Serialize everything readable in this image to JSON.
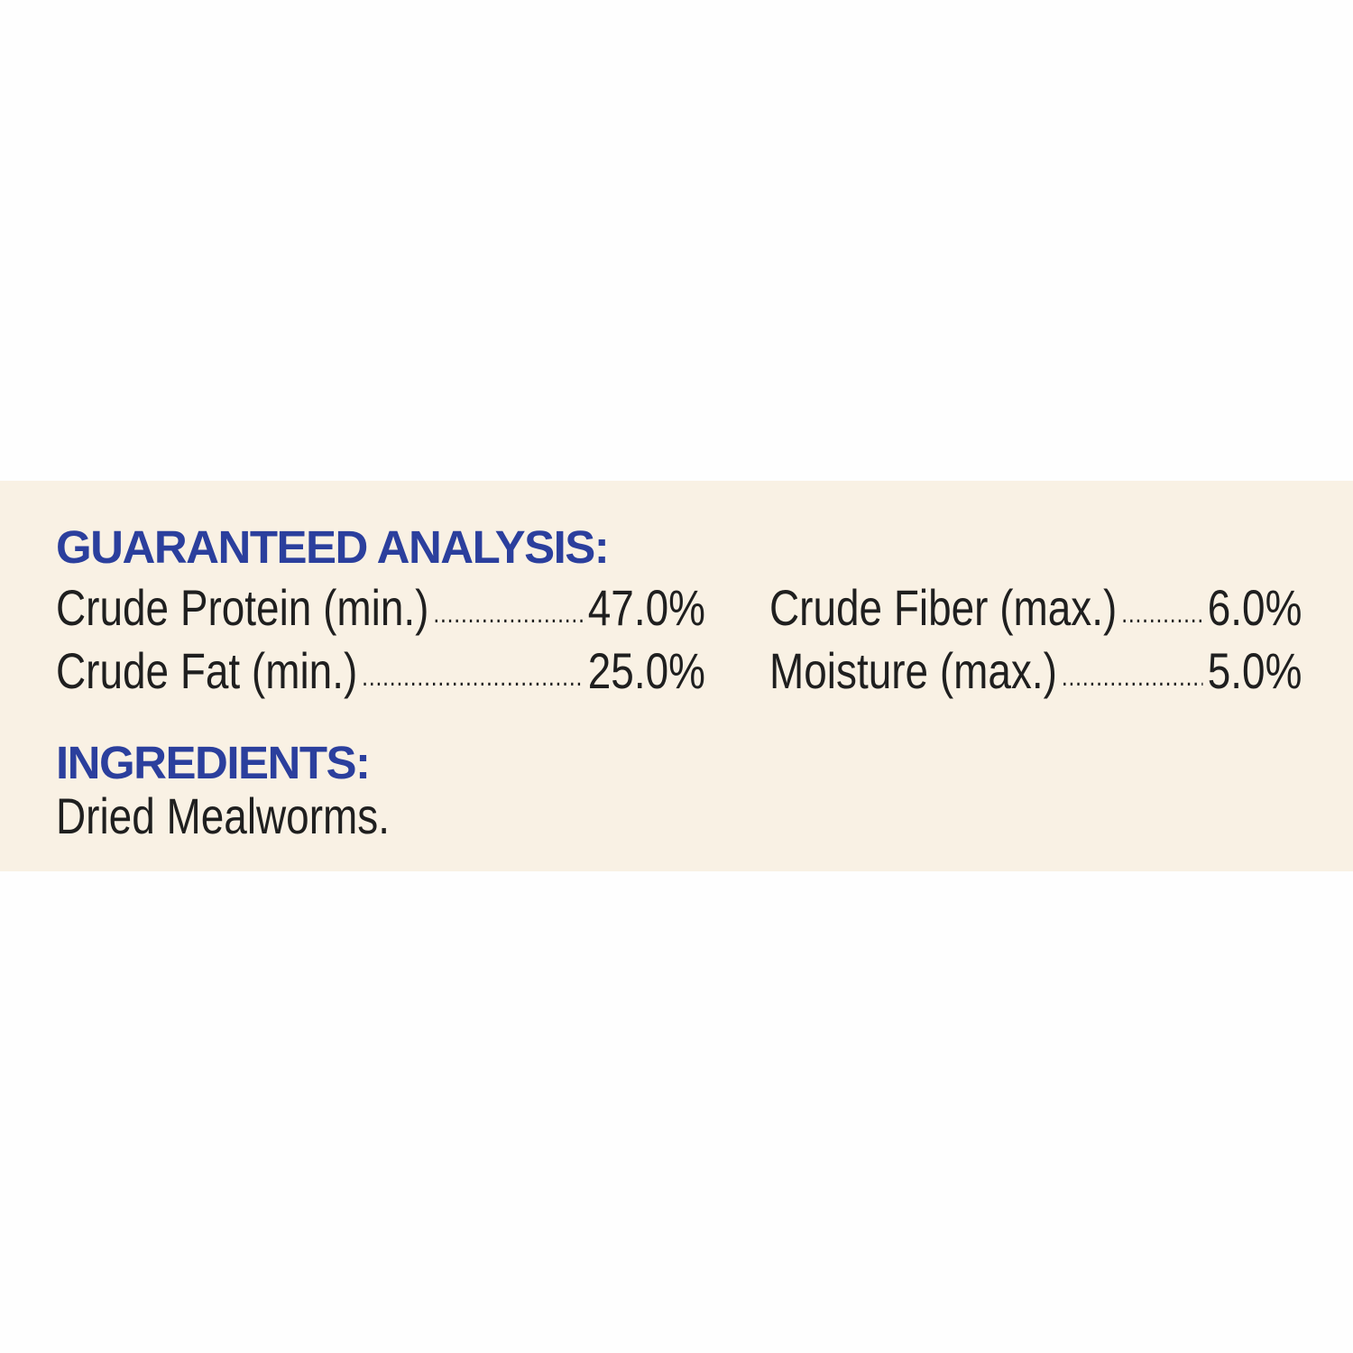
{
  "colors": {
    "band": "#f9f1e4",
    "heading": "#2b3f9d",
    "text": "#1f1f1f"
  },
  "analysis": {
    "title": "GUARANTEED ANALYSIS:",
    "items": [
      {
        "label": "Crude Protein (min.)",
        "value": "47.0%"
      },
      {
        "label": "Crude Fat (min.)",
        "value": "25.0%"
      },
      {
        "label": "Crude Fiber (max.)",
        "value": "6.0%"
      },
      {
        "label": "Moisture (max.)",
        "value": "5.0%"
      }
    ]
  },
  "ingredients": {
    "title": "INGREDIENTS:",
    "text": "Dried Mealworms."
  }
}
